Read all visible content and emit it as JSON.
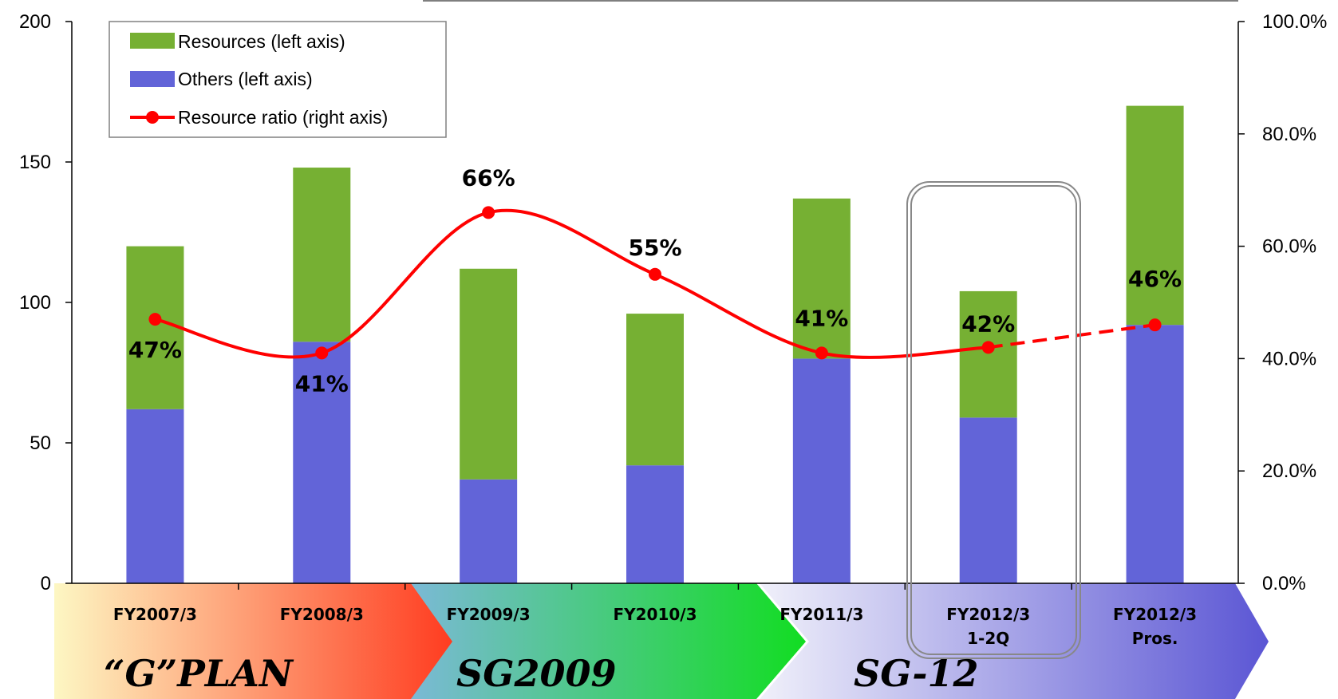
{
  "chart_data": {
    "type": "bar",
    "stacked": true,
    "categories": [
      "FY2007/3",
      "FY2008/3",
      "FY2009/3",
      "FY2010/3",
      "FY2011/3",
      "FY2012/3\n1-2Q",
      "FY2012/3\nPros."
    ],
    "series": [
      {
        "name": "Others (left axis)",
        "type": "bar",
        "axis": "left",
        "color": "#6264D8",
        "values": [
          62,
          86,
          37,
          42,
          80,
          59,
          92
        ]
      },
      {
        "name": "Resources (left axis)",
        "type": "bar",
        "axis": "left",
        "color": "#76B033",
        "values": [
          58,
          62,
          75,
          54,
          57,
          45,
          78
        ]
      },
      {
        "name": "Resource ratio (right axis)",
        "type": "line",
        "axis": "right",
        "color": "#FF0000",
        "values": [
          0.47,
          0.41,
          0.66,
          0.55,
          0.41,
          0.42,
          0.46
        ],
        "dashed_last_segment": true
      }
    ],
    "point_labels": [
      "47%",
      "41%",
      "66%",
      "55%",
      "41%",
      "42%",
      "46%"
    ],
    "y_left": {
      "ylim": [
        0,
        200
      ],
      "ticks": [
        "0",
        "50",
        "100",
        "150",
        "200"
      ]
    },
    "y_right": {
      "ylim": [
        0,
        1
      ],
      "ticks": [
        "0.0%",
        "20.0%",
        "40.0%",
        "60.0%",
        "80.0%",
        "100.0%"
      ]
    },
    "legend_placement": "top-left",
    "grid": false,
    "highlighted_category": "FY2012/3\n1-2Q",
    "phases": [
      {
        "label": "“G”PLAN",
        "colors": [
          "#FDF7C3",
          "#FF3B1F"
        ]
      },
      {
        "label": "SG2009",
        "colors": [
          "#7BB9D6",
          "#12DD22"
        ]
      },
      {
        "label": "SG-12",
        "colors": [
          "#F0F0FA",
          "#5B56D4"
        ]
      }
    ]
  }
}
